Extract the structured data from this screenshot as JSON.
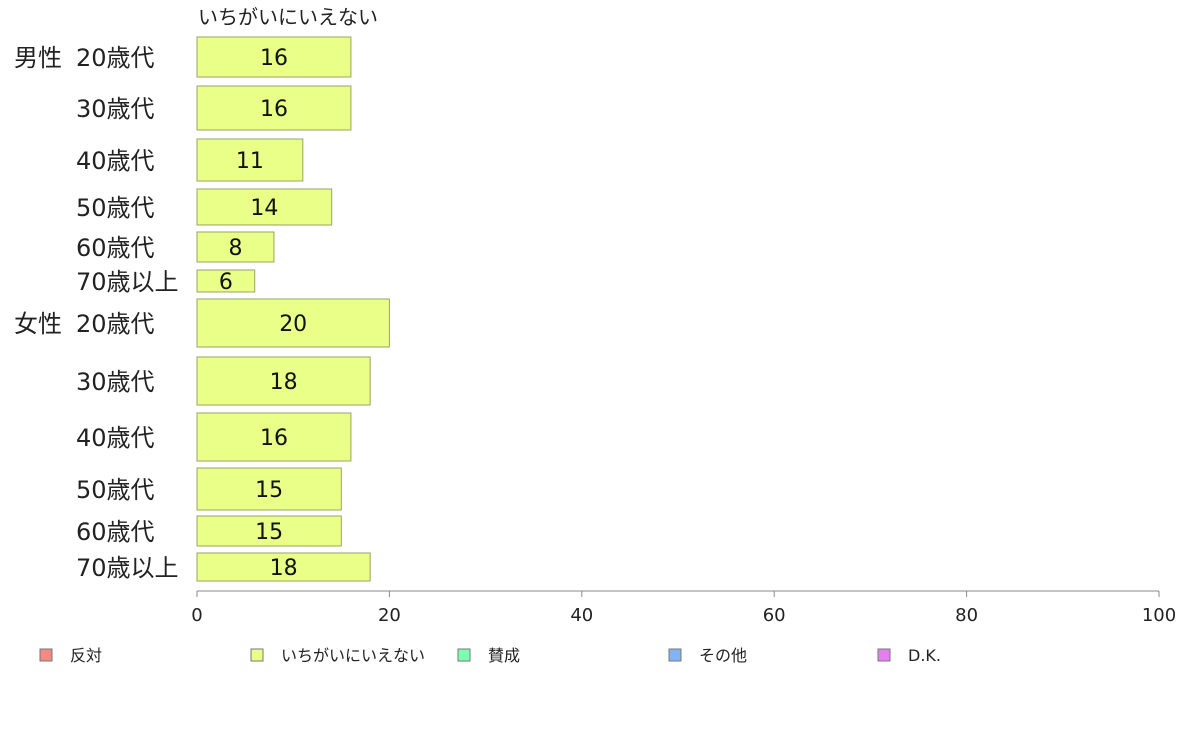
{
  "chart_data": {
    "type": "bar",
    "orientation": "horizontal",
    "stacked": true,
    "series_title": "いちがいにいえない",
    "groups": [
      {
        "label": "男性",
        "start": 0,
        "end": 5
      },
      {
        "label": "女性",
        "start": 6,
        "end": 11
      }
    ],
    "categories": [
      "20歳代",
      "30歳代",
      "40歳代",
      "50歳代",
      "60歳代",
      "70歳以上",
      "20歳代",
      "30歳代",
      "40歳代",
      "50歳代",
      "60歳代",
      "70歳以上"
    ],
    "series": [
      {
        "name": "いちがいにいえない",
        "color": "#eaff88",
        "values": [
          16,
          16,
          11,
          14,
          8,
          6,
          20,
          18,
          16,
          15,
          15,
          18
        ]
      }
    ],
    "xlim": [
      0,
      100
    ],
    "xticks": [
      0,
      20,
      40,
      60,
      80,
      100
    ],
    "legend_position": "bottom",
    "legend": [
      {
        "label": "反対",
        "color": "#f28b82"
      },
      {
        "label": "いちがいにいえない",
        "color": "#eaff88"
      },
      {
        "label": "賛成",
        "color": "#7dffb0"
      },
      {
        "label": "その他",
        "color": "#82b4f5"
      },
      {
        "label": "D.K.",
        "color": "#e47ff0"
      }
    ],
    "grid": false
  }
}
